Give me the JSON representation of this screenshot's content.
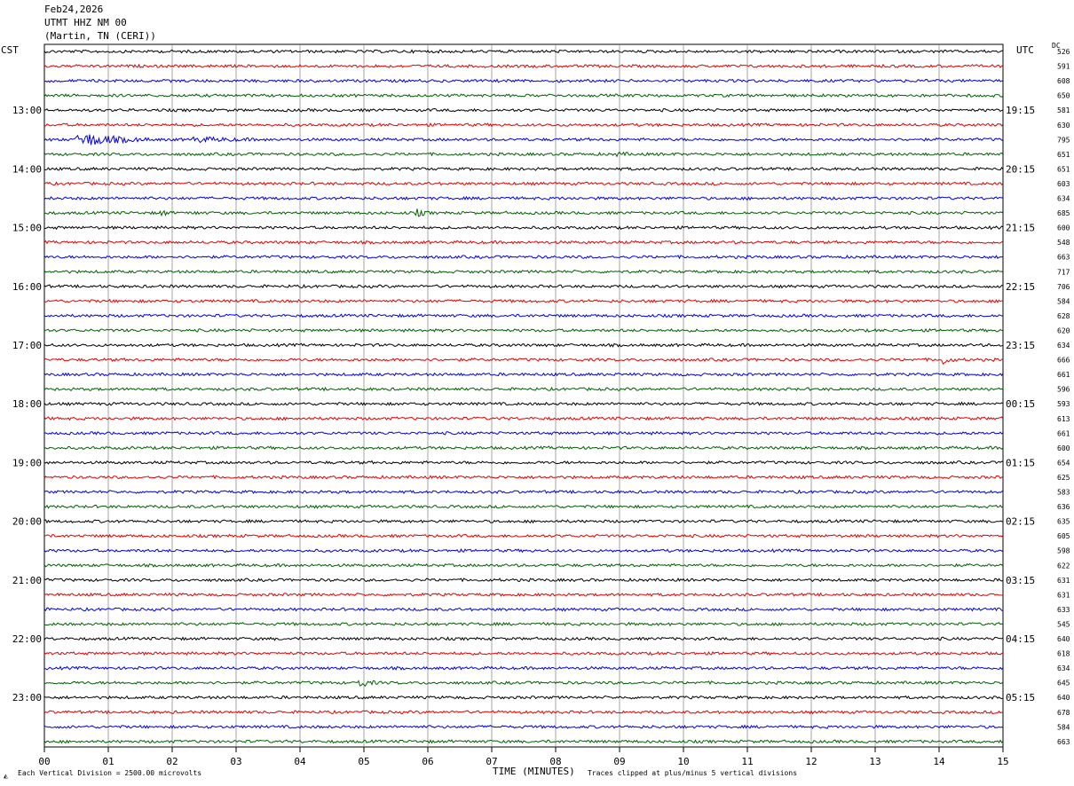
{
  "header": {
    "date": "Feb24,2026",
    "station": "UTMT HHZ NM 00",
    "location": "(Martin, TN (CERI))"
  },
  "left_axis_title": "CST",
  "right_axis_title": "UTC",
  "dc_title": "DC",
  "footer": {
    "scale_note": "Each Vertical Division = 2500.00 microvolts",
    "clip_note": "Traces clipped at plus/minus 5 vertical divisions",
    "xlabel": "TIME (MINUTES)"
  },
  "colors": {
    "cycle": [
      "#000000",
      "#e00000",
      "#0000e0",
      "#006000"
    ],
    "grid": "#808080",
    "text": "#000000"
  },
  "chart_data": {
    "type": "line",
    "title": "UTMT HHZ NM 00",
    "x": {
      "label": "TIME (MINUTES)",
      "range": [
        0,
        15
      ],
      "ticks": [
        "00",
        "01",
        "02",
        "03",
        "04",
        "05",
        "06",
        "07",
        "08",
        "09",
        "10",
        "11",
        "12",
        "13",
        "14",
        "15"
      ]
    },
    "rows_per_hour": 4,
    "row_count": 48,
    "hour_labels_cst": [
      "13:00",
      "14:00",
      "15:00",
      "16:00",
      "17:00",
      "18:00",
      "19:00",
      "20:00",
      "21:00",
      "22:00",
      "23:00"
    ],
    "hour_labels_utc": [
      "19:15",
      "20:15",
      "21:15",
      "22:15",
      "23:15",
      "00:15",
      "01:15",
      "02:15",
      "03:15",
      "04:15",
      "05:15"
    ],
    "dc_offsets": [
      526,
      591,
      608,
      650,
      581,
      630,
      795,
      651,
      651,
      603,
      634,
      685,
      600,
      548,
      663,
      717,
      706,
      584,
      628,
      620,
      634,
      666,
      661,
      596,
      593,
      613,
      661,
      600,
      654,
      625,
      583,
      636,
      635,
      605,
      598,
      622,
      631,
      631,
      633,
      545,
      640,
      618,
      634,
      645,
      640,
      678,
      584,
      663
    ],
    "events": [
      {
        "row": 6,
        "minute": 0.5,
        "duration_min": 1.5,
        "amplitude": 10
      },
      {
        "row": 6,
        "minute": 2.3,
        "duration_min": 2.5,
        "amplitude": 4
      },
      {
        "row": 7,
        "minute": 8.9,
        "duration_min": 1.3,
        "amplitude": 3
      },
      {
        "row": 11,
        "minute": 1.8,
        "duration_min": 0.4,
        "amplitude": 5
      },
      {
        "row": 11,
        "minute": 2.3,
        "duration_min": 0.6,
        "amplitude": 3
      },
      {
        "row": 11,
        "minute": 5.8,
        "duration_min": 0.4,
        "amplitude": 6
      },
      {
        "row": 21,
        "minute": 14.0,
        "duration_min": 0.4,
        "amplitude": 8
      },
      {
        "row": 43,
        "minute": 4.9,
        "duration_min": 0.5,
        "amplitude": 7
      }
    ]
  }
}
